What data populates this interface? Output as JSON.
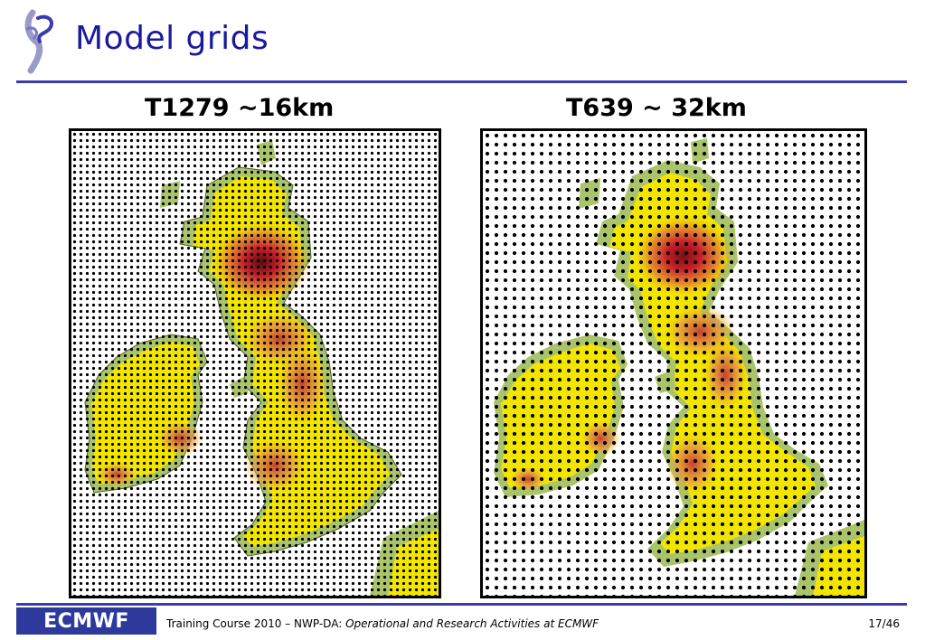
{
  "header": {
    "title": "Model grids"
  },
  "panels": [
    {
      "label": "T1279 ~16km"
    },
    {
      "label": "T639 ~ 32km"
    }
  ],
  "footer": {
    "logo_text": "ECMWF",
    "course": "Training Course 2010 – NWP-DA: ",
    "course_italic": "Operational and Research Activities at ECMWF",
    "page": "17/46"
  },
  "colors": {
    "title": "#1a1a9c",
    "rule": "#3b3bb0",
    "logo_bg": "#2d3a9c"
  }
}
